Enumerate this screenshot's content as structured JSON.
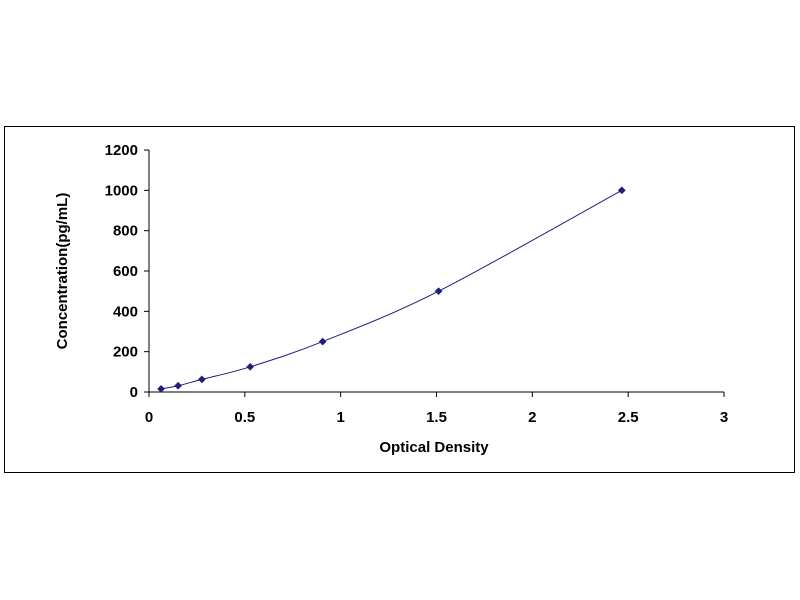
{
  "chart_data": {
    "type": "scatter",
    "xlabel": "Optical Density",
    "ylabel": "Concentration(pg/mL)",
    "xlim": [
      0,
      3
    ],
    "ylim": [
      0,
      1200
    ],
    "xticks": [
      0,
      0.5,
      1,
      1.5,
      2,
      2.5,
      3
    ],
    "xtick_labels": [
      "0",
      "0.5",
      "1",
      "1.5",
      "2",
      "2.5",
      "3"
    ],
    "yticks": [
      0,
      200,
      400,
      600,
      800,
      1000,
      1200
    ],
    "ytick_labels": [
      "0",
      "200",
      "400",
      "600",
      "800",
      "1000",
      "1200"
    ],
    "grid": false,
    "legend": "none",
    "marker": "diamond",
    "marker_color": "#1f1f7a",
    "line_color": "#1f1f7a",
    "fitted_curve": true,
    "series": [
      {
        "x": [
          0.063,
          0.152,
          0.276,
          0.528,
          0.906,
          1.511,
          2.467
        ],
        "y": [
          15.6,
          31.2,
          62.5,
          125,
          250,
          500,
          1000
        ]
      }
    ]
  }
}
